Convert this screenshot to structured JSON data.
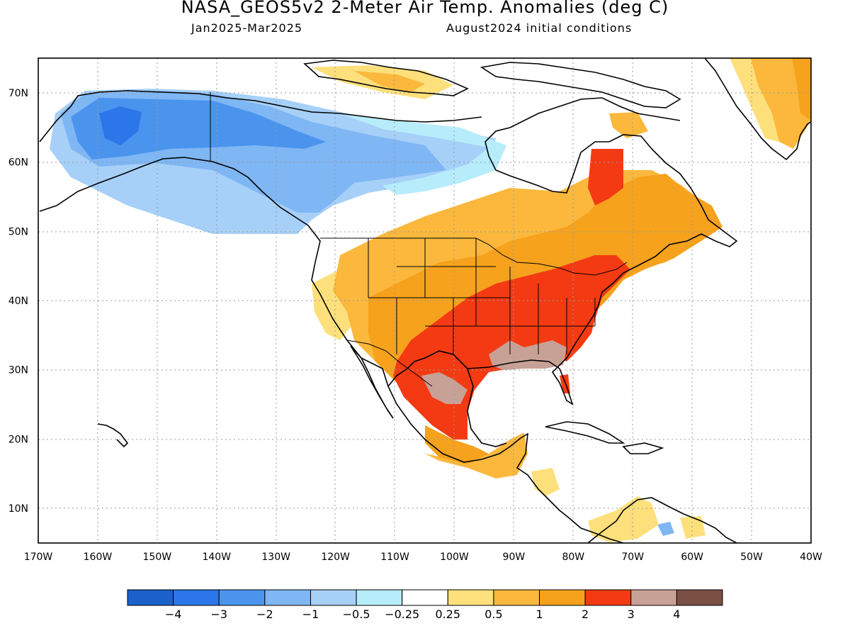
{
  "header": {
    "title": "NASA_GEOS5v2 2-Meter Air Temp. Anomalies (deg C)",
    "period": "Jan2025-Mar2025",
    "init": "August2024 initial conditions"
  },
  "map": {
    "lat_labels": [
      "70N",
      "60N",
      "50N",
      "40N",
      "30N",
      "20N",
      "10N"
    ],
    "lon_labels": [
      "170W",
      "160W",
      "150W",
      "140W",
      "130W",
      "120W",
      "110W",
      "100W",
      "90W",
      "80W",
      "70W",
      "60W",
      "50W",
      "40W"
    ],
    "extent": {
      "lon": [
        -170,
        -40
      ],
      "lat": [
        5,
        75
      ]
    }
  },
  "colorbar": {
    "colors": [
      "#1a62c9",
      "#2b76e8",
      "#4a94ee",
      "#7fb6f4",
      "#a6d0f8",
      "#b7ecfb",
      "#ffffff",
      "#fde07b",
      "#fbb83d",
      "#f6a21d",
      "#f43a12",
      "#c8a196",
      "#7b5044"
    ],
    "labels": [
      "-4",
      "-3",
      "-2",
      "-1",
      "-0.5",
      "-0.25",
      "0.25",
      "0.5",
      "1",
      "2",
      "3",
      "4"
    ],
    "label_display": [
      "−4",
      "−3",
      "−2",
      "−1",
      "−0.5",
      "−0.25",
      "0.25",
      "0.5",
      "1",
      "2",
      "3",
      "4"
    ]
  }
}
